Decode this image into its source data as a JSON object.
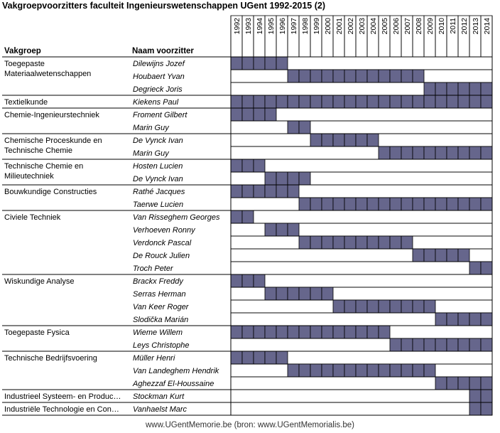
{
  "title": "Vakgroepvoorzitters faculteit Ingenieurswetenschappen UGent 1992-2015 (2)",
  "header": {
    "group_col": "Vakgroep",
    "chair_col": "Naam voorzitter"
  },
  "footer": "www.UGentMemorie.be (bron: www.UGentMemorialis.be)",
  "colors": {
    "bar": "#66668c",
    "grid": "#000000"
  },
  "chart_data": {
    "type": "table",
    "years": [
      "1992",
      "1993",
      "1994",
      "1995",
      "1996",
      "1997",
      "1998",
      "1999",
      "2000",
      "2001",
      "2002",
      "2003",
      "2004",
      "2005",
      "2006",
      "2007",
      "2008",
      "2009",
      "2010",
      "2011",
      "2012",
      "2013",
      "2014"
    ],
    "groups": [
      {
        "name": "Toegepaste Materiaalwetenschappen",
        "label_lines": [
          "Toegepaste",
          "Materiaalwetenschappen"
        ],
        "chairs": [
          {
            "name": "Dilewijns Jozef",
            "start": 1992,
            "end": 1996
          },
          {
            "name": "Houbaert Yvan",
            "start": 1997,
            "end": 2008
          },
          {
            "name": "Degrieck Joris",
            "start": 2009,
            "end": 2014
          }
        ]
      },
      {
        "name": "Textielkunde",
        "label_lines": [
          "Textielkunde"
        ],
        "chairs": [
          {
            "name": "Kiekens Paul",
            "start": 1992,
            "end": 2014
          }
        ]
      },
      {
        "name": "Chemie-Ingenieurstechniek",
        "label_lines": [
          "Chemie-Ingenieurstechniek"
        ],
        "chairs": [
          {
            "name": "Froment Gilbert",
            "start": 1992,
            "end": 1995
          },
          {
            "name": "Marin Guy",
            "start": 1997,
            "end": 1998
          }
        ]
      },
      {
        "name": "Chemische Proceskunde en Technische Chemie",
        "label_lines": [
          "Chemische Proceskunde en",
          "Technische Chemie"
        ],
        "chairs": [
          {
            "name": "De Vynck Ivan",
            "start": 1999,
            "end": 2004
          },
          {
            "name": "Marin Guy",
            "start": 2005,
            "end": 2014
          }
        ]
      },
      {
        "name": "Technische Chemie en Milieutechniek",
        "label_lines": [
          "Technische Chemie en",
          "Milieutechniek"
        ],
        "chairs": [
          {
            "name": "Hosten Lucien",
            "start": 1992,
            "end": 1994
          },
          {
            "name": "De Vynck Ivan",
            "start": 1995,
            "end": 1998
          }
        ]
      },
      {
        "name": "Bouwkundige Constructies",
        "label_lines": [
          "Bouwkundige Constructies"
        ],
        "chairs": [
          {
            "name": "Rathé Jacques",
            "start": 1992,
            "end": 1997
          },
          {
            "name": "Taerwe Lucien",
            "start": 1998,
            "end": 2014
          }
        ]
      },
      {
        "name": "Civiele Techniek",
        "label_lines": [
          "Civiele Techniek"
        ],
        "chairs": [
          {
            "name": "Van Risseghem Georges",
            "start": 1992,
            "end": 1993
          },
          {
            "name": "Verhoeven Ronny",
            "start": 1995,
            "end": 1997
          },
          {
            "name": "Verdonck Pascal",
            "start": 1998,
            "end": 2007
          },
          {
            "name": "De Rouck Julien",
            "start": 2008,
            "end": 2012
          },
          {
            "name": "Troch Peter",
            "start": 2013,
            "end": 2014
          }
        ]
      },
      {
        "name": "Wiskundige Analyse",
        "label_lines": [
          "Wiskundige Analyse"
        ],
        "chairs": [
          {
            "name": "Brackx Freddy",
            "start": 1992,
            "end": 1994
          },
          {
            "name": "Serras Herman",
            "start": 1995,
            "end": 2000
          },
          {
            "name": "Van Keer Roger",
            "start": 2001,
            "end": 2009
          },
          {
            "name": "Slodička Marián",
            "start": 2010,
            "end": 2014
          }
        ]
      },
      {
        "name": "Toegepaste Fysica",
        "label_lines": [
          "Toegepaste Fysica"
        ],
        "chairs": [
          {
            "name": "Wieme Willem",
            "start": 1992,
            "end": 2005
          },
          {
            "name": "Leys Christophe",
            "start": 2006,
            "end": 2014
          }
        ]
      },
      {
        "name": "Technische Bedrijfsvoering",
        "label_lines": [
          "Technische Bedrijfsvoering"
        ],
        "chairs": [
          {
            "name": "Müller Henri",
            "start": 1992,
            "end": 1996
          },
          {
            "name": "Van Landeghem Hendrik",
            "start": 1997,
            "end": 2009
          },
          {
            "name": "Aghezzaf El-Houssaine",
            "start": 2010,
            "end": 2014
          }
        ]
      },
      {
        "name": "Industrieel Systeem- en Produc…",
        "label_lines": [
          "Industrieel Systeem- en Produc…"
        ],
        "chairs": [
          {
            "name": "Stockman Kurt",
            "start": 2013,
            "end": 2014
          }
        ]
      },
      {
        "name": "Industriële Technologie en Con…",
        "label_lines": [
          "Industriële Technologie en Con…"
        ],
        "chairs": [
          {
            "name": "Vanhaelst Marc",
            "start": 2013,
            "end": 2014
          }
        ]
      }
    ]
  }
}
